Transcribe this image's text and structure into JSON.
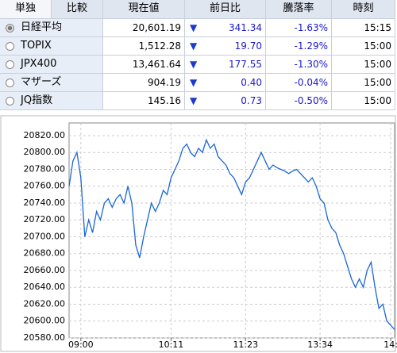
{
  "table": {
    "tabs": [
      "単独",
      "比較"
    ],
    "headers": [
      "現在値",
      "前日比",
      "騰落率",
      "時刻"
    ],
    "rows": [
      [
        "日経平均",
        "20,601.19",
        "341.34",
        "-1.63%",
        "15:15"
      ],
      [
        "TOPIX",
        "1,512.28",
        "19.70",
        "-1.29%",
        "15:00"
      ],
      [
        "JPX400",
        "13,461.64",
        "177.55",
        "-1.30%",
        "15:00"
      ],
      [
        "マザーズ",
        "904.19",
        "0.40",
        "-0.04%",
        "15:00"
      ],
      [
        "JQ指数",
        "145.16",
        "0.73",
        "-0.50%",
        "15:00"
      ]
    ]
  },
  "chart_data": {
    "type": "line",
    "color": "#1a66d6",
    "values": [
      20760,
      20790,
      20800,
      20770,
      20700,
      20720,
      20705,
      20730,
      20720,
      20740,
      20745,
      20735,
      20745,
      20750,
      20740,
      20760,
      20740,
      20690,
      20675,
      20700,
      20720,
      20740,
      20730,
      20740,
      20755,
      20750,
      20770,
      20780,
      20790,
      20805,
      20810,
      20800,
      20795,
      20805,
      20800,
      20815,
      20805,
      20810,
      20795,
      20790,
      20785,
      20775,
      20770,
      20760,
      20750,
      20765,
      20770,
      20780,
      20790,
      20800,
      20790,
      20780,
      20785,
      20782,
      20780,
      20778,
      20775,
      20778,
      20780,
      20775,
      20770,
      20765,
      20770,
      20760,
      20745,
      20740,
      20720,
      20710,
      20705,
      20690,
      20680,
      20665,
      20650,
      20640,
      20650,
      20640,
      20660,
      20670,
      20640,
      20615,
      20620,
      20600,
      20595,
      20590
    ],
    "xlim": [
      0,
      83
    ],
    "xticks": [
      {
        "value": 3,
        "label": "09:00"
      },
      {
        "value": 26,
        "label": "10:11"
      },
      {
        "value": 45,
        "label": "11:23"
      },
      {
        "value": 64,
        "label": "13:34"
      },
      {
        "value": 82,
        "label": "14:"
      }
    ],
    "ylim": [
      20580,
      20835
    ],
    "yticks": [
      {
        "value": 20820,
        "label": "20820.00"
      },
      {
        "value": 20800,
        "label": "20800.00"
      },
      {
        "value": 20780,
        "label": "20780.00"
      },
      {
        "value": 20760,
        "label": "20760.00"
      },
      {
        "value": 20740,
        "label": "20740.00"
      },
      {
        "value": 20720,
        "label": "20720.00"
      },
      {
        "value": 20700,
        "label": "20700.00"
      },
      {
        "value": 20680,
        "label": "20680.00"
      },
      {
        "value": 20660,
        "label": "20660.00"
      },
      {
        "value": 20640,
        "label": "20640.00"
      },
      {
        "value": 20620,
        "label": "20620.00"
      },
      {
        "value": 20600,
        "label": "20600.00"
      },
      {
        "value": 20580,
        "label": "20580.00"
      }
    ],
    "grid": true
  }
}
